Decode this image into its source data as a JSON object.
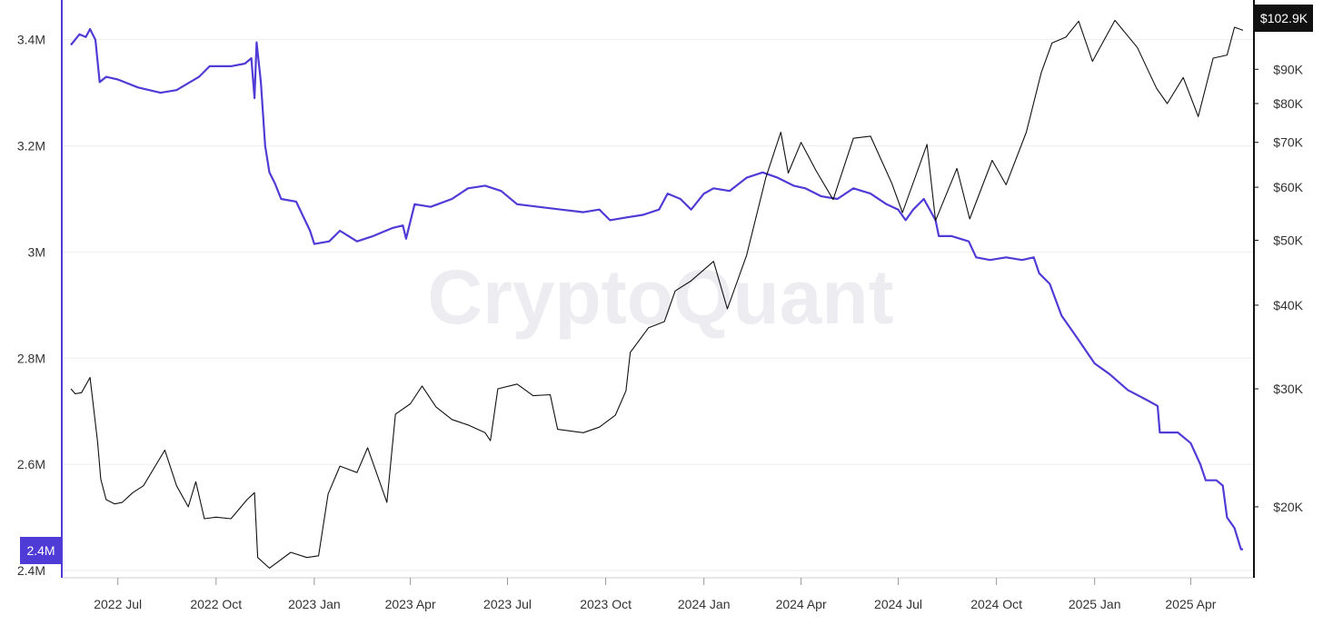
{
  "watermark": "CryptoQuant",
  "colors": {
    "left_series": "#4f3bd6",
    "right_series": "#111111",
    "grid": "#eeeeee",
    "left_badge_bg": "#4f3bd6",
    "right_badge_bg": "#111111"
  },
  "badges": {
    "left_value": "2.4M",
    "right_value": "$102.9K"
  },
  "chart_data": {
    "type": "line",
    "x_ticks": [
      "2022 Jul",
      "2022 Oct",
      "2023 Jan",
      "2023 Apr",
      "2023 Jul",
      "2023 Oct",
      "2024 Jan",
      "2024 Apr",
      "2024 Jul",
      "2024 Oct",
      "2025 Jan",
      "2025 Apr"
    ],
    "x_range": [
      "2022-05-18",
      "2025-05-20"
    ],
    "left_axis": {
      "ylim": [
        2.4,
        3.42
      ],
      "ticks": [
        {
          "value": 2.4,
          "label": "2.4M"
        },
        {
          "value": 2.6,
          "label": "2.6M"
        },
        {
          "value": 2.8,
          "label": "2.8M"
        },
        {
          "value": 3.0,
          "label": "3M"
        },
        {
          "value": 3.2,
          "label": "3.2M"
        },
        {
          "value": 3.4,
          "label": "3.4M"
        }
      ]
    },
    "right_axis": {
      "scale": "log",
      "ylim": [
        15000,
        110000
      ],
      "ticks": [
        {
          "value": 20000,
          "label": "$20K"
        },
        {
          "value": 30000,
          "label": "$30K"
        },
        {
          "value": 40000,
          "label": "$40K"
        },
        {
          "value": 50000,
          "label": "$50K"
        },
        {
          "value": 60000,
          "label": "$60K"
        },
        {
          "value": 70000,
          "label": "$70K"
        },
        {
          "value": 80000,
          "label": "$80K"
        },
        {
          "value": 90000,
          "label": "$90K"
        }
      ]
    },
    "grid": true,
    "series": [
      {
        "axis": "left",
        "points": [
          [
            "2022-05-18",
            3.39
          ],
          [
            "2022-05-22",
            3.4
          ],
          [
            "2022-05-26",
            3.41
          ],
          [
            "2022-06-01",
            3.405
          ],
          [
            "2022-06-05",
            3.42
          ],
          [
            "2022-06-10",
            3.4
          ],
          [
            "2022-06-14",
            3.32
          ],
          [
            "2022-06-20",
            3.33
          ],
          [
            "2022-07-01",
            3.325
          ],
          [
            "2022-07-20",
            3.31
          ],
          [
            "2022-08-10",
            3.3
          ],
          [
            "2022-08-25",
            3.305
          ],
          [
            "2022-09-15",
            3.33
          ],
          [
            "2022-09-25",
            3.35
          ],
          [
            "2022-10-15",
            3.35
          ],
          [
            "2022-10-28",
            3.355
          ],
          [
            "2022-11-03",
            3.365
          ],
          [
            "2022-11-06",
            3.29
          ],
          [
            "2022-11-08",
            3.395
          ],
          [
            "2022-11-12",
            3.32
          ],
          [
            "2022-11-16",
            3.2
          ],
          [
            "2022-11-20",
            3.15
          ],
          [
            "2022-11-25",
            3.13
          ],
          [
            "2022-12-01",
            3.1
          ],
          [
            "2022-12-15",
            3.095
          ],
          [
            "2022-12-28",
            3.04
          ],
          [
            "2023-01-01",
            3.015
          ],
          [
            "2023-01-15",
            3.02
          ],
          [
            "2023-01-25",
            3.04
          ],
          [
            "2023-02-10",
            3.02
          ],
          [
            "2023-02-25",
            3.03
          ],
          [
            "2023-03-15",
            3.045
          ],
          [
            "2023-03-25",
            3.05
          ],
          [
            "2023-03-28",
            3.025
          ],
          [
            "2023-04-05",
            3.09
          ],
          [
            "2023-04-20",
            3.085
          ],
          [
            "2023-05-10",
            3.1
          ],
          [
            "2023-05-25",
            3.12
          ],
          [
            "2023-06-10",
            3.125
          ],
          [
            "2023-06-25",
            3.115
          ],
          [
            "2023-07-10",
            3.09
          ],
          [
            "2023-07-30",
            3.085
          ],
          [
            "2023-08-20",
            3.08
          ],
          [
            "2023-09-10",
            3.075
          ],
          [
            "2023-09-25",
            3.08
          ],
          [
            "2023-10-05",
            3.06
          ],
          [
            "2023-10-20",
            3.065
          ],
          [
            "2023-11-05",
            3.07
          ],
          [
            "2023-11-20",
            3.08
          ],
          [
            "2023-11-28",
            3.11
          ],
          [
            "2023-12-10",
            3.1
          ],
          [
            "2023-12-20",
            3.08
          ],
          [
            "2024-01-01",
            3.11
          ],
          [
            "2024-01-10",
            3.12
          ],
          [
            "2024-01-25",
            3.115
          ],
          [
            "2024-02-10",
            3.14
          ],
          [
            "2024-02-25",
            3.15
          ],
          [
            "2024-03-10",
            3.14
          ],
          [
            "2024-03-25",
            3.125
          ],
          [
            "2024-04-05",
            3.12
          ],
          [
            "2024-04-20",
            3.105
          ],
          [
            "2024-05-05",
            3.1
          ],
          [
            "2024-05-20",
            3.12
          ],
          [
            "2024-06-05",
            3.11
          ],
          [
            "2024-06-20",
            3.09
          ],
          [
            "2024-07-01",
            3.08
          ],
          [
            "2024-07-08",
            3.06
          ],
          [
            "2024-07-15",
            3.08
          ],
          [
            "2024-07-25",
            3.1
          ],
          [
            "2024-08-05",
            3.06
          ],
          [
            "2024-08-08",
            3.03
          ],
          [
            "2024-08-20",
            3.03
          ],
          [
            "2024-09-05",
            3.02
          ],
          [
            "2024-09-12",
            2.99
          ],
          [
            "2024-09-25",
            2.985
          ],
          [
            "2024-10-10",
            2.99
          ],
          [
            "2024-10-25",
            2.985
          ],
          [
            "2024-11-05",
            2.99
          ],
          [
            "2024-11-10",
            2.96
          ],
          [
            "2024-11-20",
            2.94
          ],
          [
            "2024-12-01",
            2.88
          ],
          [
            "2024-12-15",
            2.84
          ],
          [
            "2025-01-01",
            2.79
          ],
          [
            "2025-01-15",
            2.77
          ],
          [
            "2025-02-01",
            2.74
          ],
          [
            "2025-02-20",
            2.72
          ],
          [
            "2025-03-01",
            2.71
          ],
          [
            "2025-03-03",
            2.66
          ],
          [
            "2025-03-20",
            2.66
          ],
          [
            "2025-04-01",
            2.64
          ],
          [
            "2025-04-10",
            2.6
          ],
          [
            "2025-04-15",
            2.57
          ],
          [
            "2025-04-25",
            2.57
          ],
          [
            "2025-05-01",
            2.56
          ],
          [
            "2025-05-05",
            2.5
          ],
          [
            "2025-05-12",
            2.48
          ],
          [
            "2025-05-18",
            2.44
          ],
          [
            "2025-05-20",
            2.44
          ]
        ]
      },
      {
        "axis": "right",
        "points": [
          [
            "2022-05-18",
            30000
          ],
          [
            "2022-05-22",
            29500
          ],
          [
            "2022-05-28",
            29600
          ],
          [
            "2022-06-05",
            31200
          ],
          [
            "2022-06-12",
            25000
          ],
          [
            "2022-06-15",
            22000
          ],
          [
            "2022-06-20",
            20500
          ],
          [
            "2022-06-28",
            20200
          ],
          [
            "2022-07-05",
            20300
          ],
          [
            "2022-07-15",
            21000
          ],
          [
            "2022-07-25",
            21500
          ],
          [
            "2022-08-05",
            23000
          ],
          [
            "2022-08-14",
            24300
          ],
          [
            "2022-08-25",
            21500
          ],
          [
            "2022-09-05",
            20000
          ],
          [
            "2022-09-12",
            21800
          ],
          [
            "2022-09-20",
            19200
          ],
          [
            "2022-10-01",
            19300
          ],
          [
            "2022-10-15",
            19200
          ],
          [
            "2022-10-30",
            20500
          ],
          [
            "2022-11-06",
            21000
          ],
          [
            "2022-11-09",
            16800
          ],
          [
            "2022-11-20",
            16200
          ],
          [
            "2022-12-10",
            17100
          ],
          [
            "2022-12-25",
            16800
          ],
          [
            "2023-01-05",
            16900
          ],
          [
            "2023-01-14",
            20900
          ],
          [
            "2023-01-25",
            23000
          ],
          [
            "2023-02-10",
            22500
          ],
          [
            "2023-02-20",
            24500
          ],
          [
            "2023-03-10",
            20300
          ],
          [
            "2023-03-18",
            27500
          ],
          [
            "2023-04-01",
            28500
          ],
          [
            "2023-04-12",
            30300
          ],
          [
            "2023-04-25",
            28200
          ],
          [
            "2023-05-10",
            27000
          ],
          [
            "2023-05-25",
            26500
          ],
          [
            "2023-06-10",
            25800
          ],
          [
            "2023-06-15",
            25100
          ],
          [
            "2023-06-22",
            30000
          ],
          [
            "2023-07-10",
            30500
          ],
          [
            "2023-07-25",
            29300
          ],
          [
            "2023-08-10",
            29400
          ],
          [
            "2023-08-17",
            26100
          ],
          [
            "2023-09-10",
            25800
          ],
          [
            "2023-09-25",
            26300
          ],
          [
            "2023-10-10",
            27400
          ],
          [
            "2023-10-20",
            29800
          ],
          [
            "2023-10-24",
            34000
          ],
          [
            "2023-11-10",
            37000
          ],
          [
            "2023-11-25",
            37800
          ],
          [
            "2023-12-05",
            42000
          ],
          [
            "2023-12-20",
            43500
          ],
          [
            "2024-01-10",
            46500
          ],
          [
            "2024-01-23",
            39500
          ],
          [
            "2024-02-10",
            47500
          ],
          [
            "2024-02-28",
            62000
          ],
          [
            "2024-03-13",
            72500
          ],
          [
            "2024-03-20",
            63000
          ],
          [
            "2024-04-01",
            70000
          ],
          [
            "2024-04-15",
            63500
          ],
          [
            "2024-05-01",
            57500
          ],
          [
            "2024-05-20",
            71000
          ],
          [
            "2024-06-05",
            71500
          ],
          [
            "2024-06-25",
            60800
          ],
          [
            "2024-07-05",
            55000
          ],
          [
            "2024-07-28",
            69500
          ],
          [
            "2024-08-05",
            53500
          ],
          [
            "2024-08-25",
            64000
          ],
          [
            "2024-09-06",
            53800
          ],
          [
            "2024-09-27",
            65800
          ],
          [
            "2024-10-10",
            60500
          ],
          [
            "2024-10-29",
            72500
          ],
          [
            "2024-11-12",
            89000
          ],
          [
            "2024-11-22",
            98500
          ],
          [
            "2024-12-05",
            100500
          ],
          [
            "2024-12-17",
            106200
          ],
          [
            "2024-12-30",
            92500
          ],
          [
            "2025-01-20",
            106500
          ],
          [
            "2025-02-10",
            97000
          ],
          [
            "2025-02-28",
            84300
          ],
          [
            "2025-03-10",
            80000
          ],
          [
            "2025-03-25",
            87500
          ],
          [
            "2025-04-08",
            76500
          ],
          [
            "2025-04-22",
            93500
          ],
          [
            "2025-05-05",
            94500
          ],
          [
            "2025-05-12",
            104000
          ],
          [
            "2025-05-20",
            102900
          ]
        ]
      }
    ]
  }
}
